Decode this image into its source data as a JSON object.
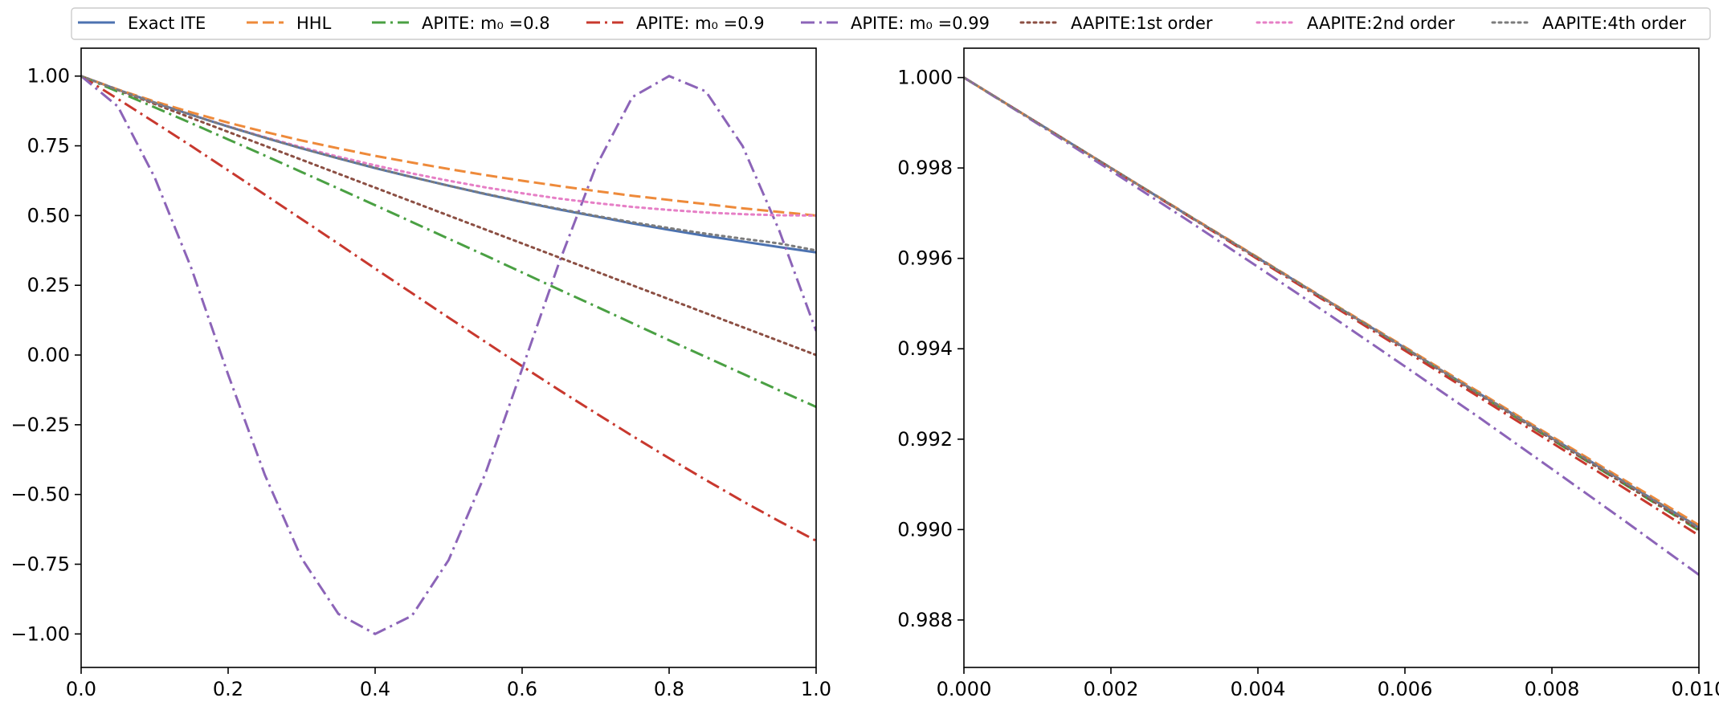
{
  "legend": {
    "placement": "top-center",
    "entries": [
      {
        "key": "exact",
        "label": "Exact ITE"
      },
      {
        "key": "hhl",
        "label": "HHL"
      },
      {
        "key": "apite08",
        "label": "APITE: m₀ =0.8"
      },
      {
        "key": "apite09",
        "label": "APITE: m₀ =0.9"
      },
      {
        "key": "apite099",
        "label": "APITE: m₀ =0.99"
      },
      {
        "key": "aapite1",
        "label": "AAPITE:1st order"
      },
      {
        "key": "aapite2",
        "label": "AAPITE:2nd order"
      },
      {
        "key": "aapite4",
        "label": "AAPITE:4th order"
      }
    ]
  },
  "styles": {
    "exact": {
      "color": "#4c72b0",
      "dash": "solid"
    },
    "hhl": {
      "color": "#ee8a3a",
      "dash": "dashed"
    },
    "apite08": {
      "color": "#4aa043",
      "dash": "dashdot"
    },
    "apite09": {
      "color": "#c8382e",
      "dash": "dashdot"
    },
    "apite099": {
      "color": "#8c64b8",
      "dash": "dashdot"
    },
    "aapite1": {
      "color": "#8c4f43",
      "dash": "dotted"
    },
    "aapite2": {
      "color": "#e67fc6",
      "dash": "dotted"
    },
    "aapite4": {
      "color": "#7c7c7c",
      "dash": "dotted"
    }
  },
  "chart_data": [
    {
      "type": "line",
      "title": "",
      "xlabel": "",
      "ylabel": "",
      "xlim": [
        0.0,
        1.0
      ],
      "ylim": [
        -1.12,
        1.1
      ],
      "grid": false,
      "xticks": [
        "0.0",
        "0.2",
        "0.4",
        "0.6",
        "0.8",
        "1.0"
      ],
      "xtick_values": [
        0.0,
        0.2,
        0.4,
        0.6,
        0.8,
        1.0
      ],
      "yticks": [
        "−1.00",
        "−0.75",
        "−0.50",
        "−0.25",
        "0.00",
        "0.25",
        "0.50",
        "0.75",
        "1.00"
      ],
      "ytick_values": [
        -1.0,
        -0.75,
        -0.5,
        -0.25,
        0.0,
        0.25,
        0.5,
        0.75,
        1.0
      ],
      "x": [
        0.0,
        0.05,
        0.1,
        0.15,
        0.2,
        0.25,
        0.3,
        0.35,
        0.4,
        0.45,
        0.5,
        0.55,
        0.6,
        0.65,
        0.7,
        0.75,
        0.8,
        0.85,
        0.9,
        0.95,
        1.0
      ],
      "series": [
        {
          "key": "exact",
          "name": "Exact ITE",
          "values": [
            1.0,
            0.951,
            0.905,
            0.861,
            0.819,
            0.779,
            0.741,
            0.705,
            0.67,
            0.638,
            0.607,
            0.577,
            0.549,
            0.522,
            0.497,
            0.472,
            0.449,
            0.427,
            0.407,
            0.387,
            0.368
          ]
        },
        {
          "key": "hhl",
          "name": "HHL",
          "values": [
            1.0,
            0.952,
            0.909,
            0.87,
            0.833,
            0.8,
            0.769,
            0.741,
            0.714,
            0.69,
            0.667,
            0.645,
            0.625,
            0.606,
            0.588,
            0.571,
            0.556,
            0.541,
            0.526,
            0.513,
            0.5
          ]
        },
        {
          "key": "apite08",
          "name": "APITE: m0 =0.8",
          "values": [
            1.0,
            0.944,
            0.888,
            0.831,
            0.773,
            0.715,
            0.656,
            0.597,
            0.537,
            0.477,
            0.417,
            0.357,
            0.296,
            0.235,
            0.175,
            0.114,
            0.053,
            -0.007,
            -0.067,
            -0.127,
            -0.186
          ]
        },
        {
          "key": "apite09",
          "name": "APITE: m0 =0.9",
          "values": [
            1.0,
            0.918,
            0.834,
            0.749,
            0.662,
            0.575,
            0.487,
            0.399,
            0.31,
            0.222,
            0.134,
            0.047,
            -0.04,
            -0.125,
            -0.208,
            -0.29,
            -0.37,
            -0.448,
            -0.524,
            -0.596,
            -0.666
          ]
        },
        {
          "key": "apite099",
          "name": "APITE: m0 =0.99",
          "values": [
            1.0,
            0.891,
            0.637,
            0.311,
            -0.07,
            -0.43,
            -0.729,
            -0.928,
            -1.0,
            -0.935,
            -0.735,
            -0.425,
            -0.05,
            0.329,
            0.673,
            0.925,
            1.0,
            0.945,
            0.749,
            0.445,
            0.086
          ]
        },
        {
          "key": "aapite1",
          "name": "AAPITE:1st order",
          "values": [
            1.0,
            0.95,
            0.9,
            0.85,
            0.8,
            0.75,
            0.7,
            0.65,
            0.6,
            0.55,
            0.5,
            0.45,
            0.4,
            0.35,
            0.3,
            0.25,
            0.2,
            0.15,
            0.1,
            0.05,
            0.0
          ]
        },
        {
          "key": "aapite2",
          "name": "AAPITE:2nd order",
          "values": [
            1.0,
            0.951,
            0.905,
            0.861,
            0.82,
            0.781,
            0.745,
            0.711,
            0.68,
            0.651,
            0.625,
            0.601,
            0.58,
            0.561,
            0.545,
            0.531,
            0.52,
            0.511,
            0.505,
            0.501,
            0.5
          ]
        },
        {
          "key": "aapite4",
          "name": "AAPITE:4th order",
          "values": [
            1.0,
            0.951,
            0.905,
            0.861,
            0.819,
            0.779,
            0.741,
            0.705,
            0.671,
            0.638,
            0.607,
            0.578,
            0.55,
            0.524,
            0.499,
            0.476,
            0.455,
            0.435,
            0.417,
            0.4,
            0.375
          ]
        }
      ]
    },
    {
      "type": "line",
      "title": "",
      "xlabel": "",
      "ylabel": "",
      "xlim": [
        0.0,
        0.01
      ],
      "ylim": [
        0.98695,
        1.00065
      ],
      "grid": false,
      "xticks": [
        "0.000",
        "0.002",
        "0.004",
        "0.006",
        "0.008",
        "0.010"
      ],
      "xtick_values": [
        0.0,
        0.002,
        0.004,
        0.006,
        0.008,
        0.01
      ],
      "yticks": [
        "0.988",
        "0.990",
        "0.992",
        "0.994",
        "0.996",
        "0.998",
        "1.000"
      ],
      "ytick_values": [
        0.988,
        0.99,
        0.992,
        0.994,
        0.996,
        0.998,
        1.0
      ],
      "x": [
        0.0,
        0.001,
        0.002,
        0.003,
        0.004,
        0.005,
        0.006,
        0.007,
        0.008,
        0.009,
        0.01
      ],
      "series": [
        {
          "key": "exact",
          "name": "Exact ITE",
          "values": [
            1.0,
            0.999,
            0.998,
            0.997,
            0.99601,
            0.99501,
            0.99402,
            0.99302,
            0.99203,
            0.99104,
            0.99005
          ]
        },
        {
          "key": "hhl",
          "name": "HHL",
          "values": [
            1.0,
            0.999,
            0.998,
            0.99701,
            0.99602,
            0.99502,
            0.99404,
            0.99305,
            0.99206,
            0.99108,
            0.9901
          ]
        },
        {
          "key": "apite08",
          "name": "APITE: m0 =0.8",
          "values": [
            1.0,
            0.999,
            0.998,
            0.997,
            0.996,
            0.995,
            0.994,
            0.993,
            0.99199,
            0.99099,
            0.98998
          ]
        },
        {
          "key": "apite09",
          "name": "APITE: m0 =0.9",
          "values": [
            1.0,
            0.999,
            0.99799,
            0.99699,
            0.99598,
            0.99497,
            0.99396,
            0.99294,
            0.99192,
            0.9909,
            0.98987
          ]
        },
        {
          "key": "apite099",
          "name": "APITE: m0 =0.99",
          "values": [
            1.0,
            0.99898,
            0.99794,
            0.99689,
            0.99581,
            0.99472,
            0.99361,
            0.99249,
            0.99134,
            0.99018,
            0.989
          ]
        },
        {
          "key": "aapite1",
          "name": "AAPITE:1st order",
          "values": [
            1.0,
            0.999,
            0.998,
            0.997,
            0.996,
            0.995,
            0.994,
            0.993,
            0.992,
            0.991,
            0.99
          ]
        },
        {
          "key": "aapite2",
          "name": "AAPITE:2nd order",
          "values": [
            1.0,
            0.999,
            0.998,
            0.997,
            0.99601,
            0.99501,
            0.99402,
            0.99302,
            0.99203,
            0.99104,
            0.99005
          ]
        },
        {
          "key": "aapite4",
          "name": "AAPITE:4th order",
          "values": [
            1.0,
            0.999,
            0.998,
            0.997,
            0.99601,
            0.99501,
            0.99402,
            0.99302,
            0.99203,
            0.99104,
            0.99005
          ]
        }
      ]
    }
  ]
}
